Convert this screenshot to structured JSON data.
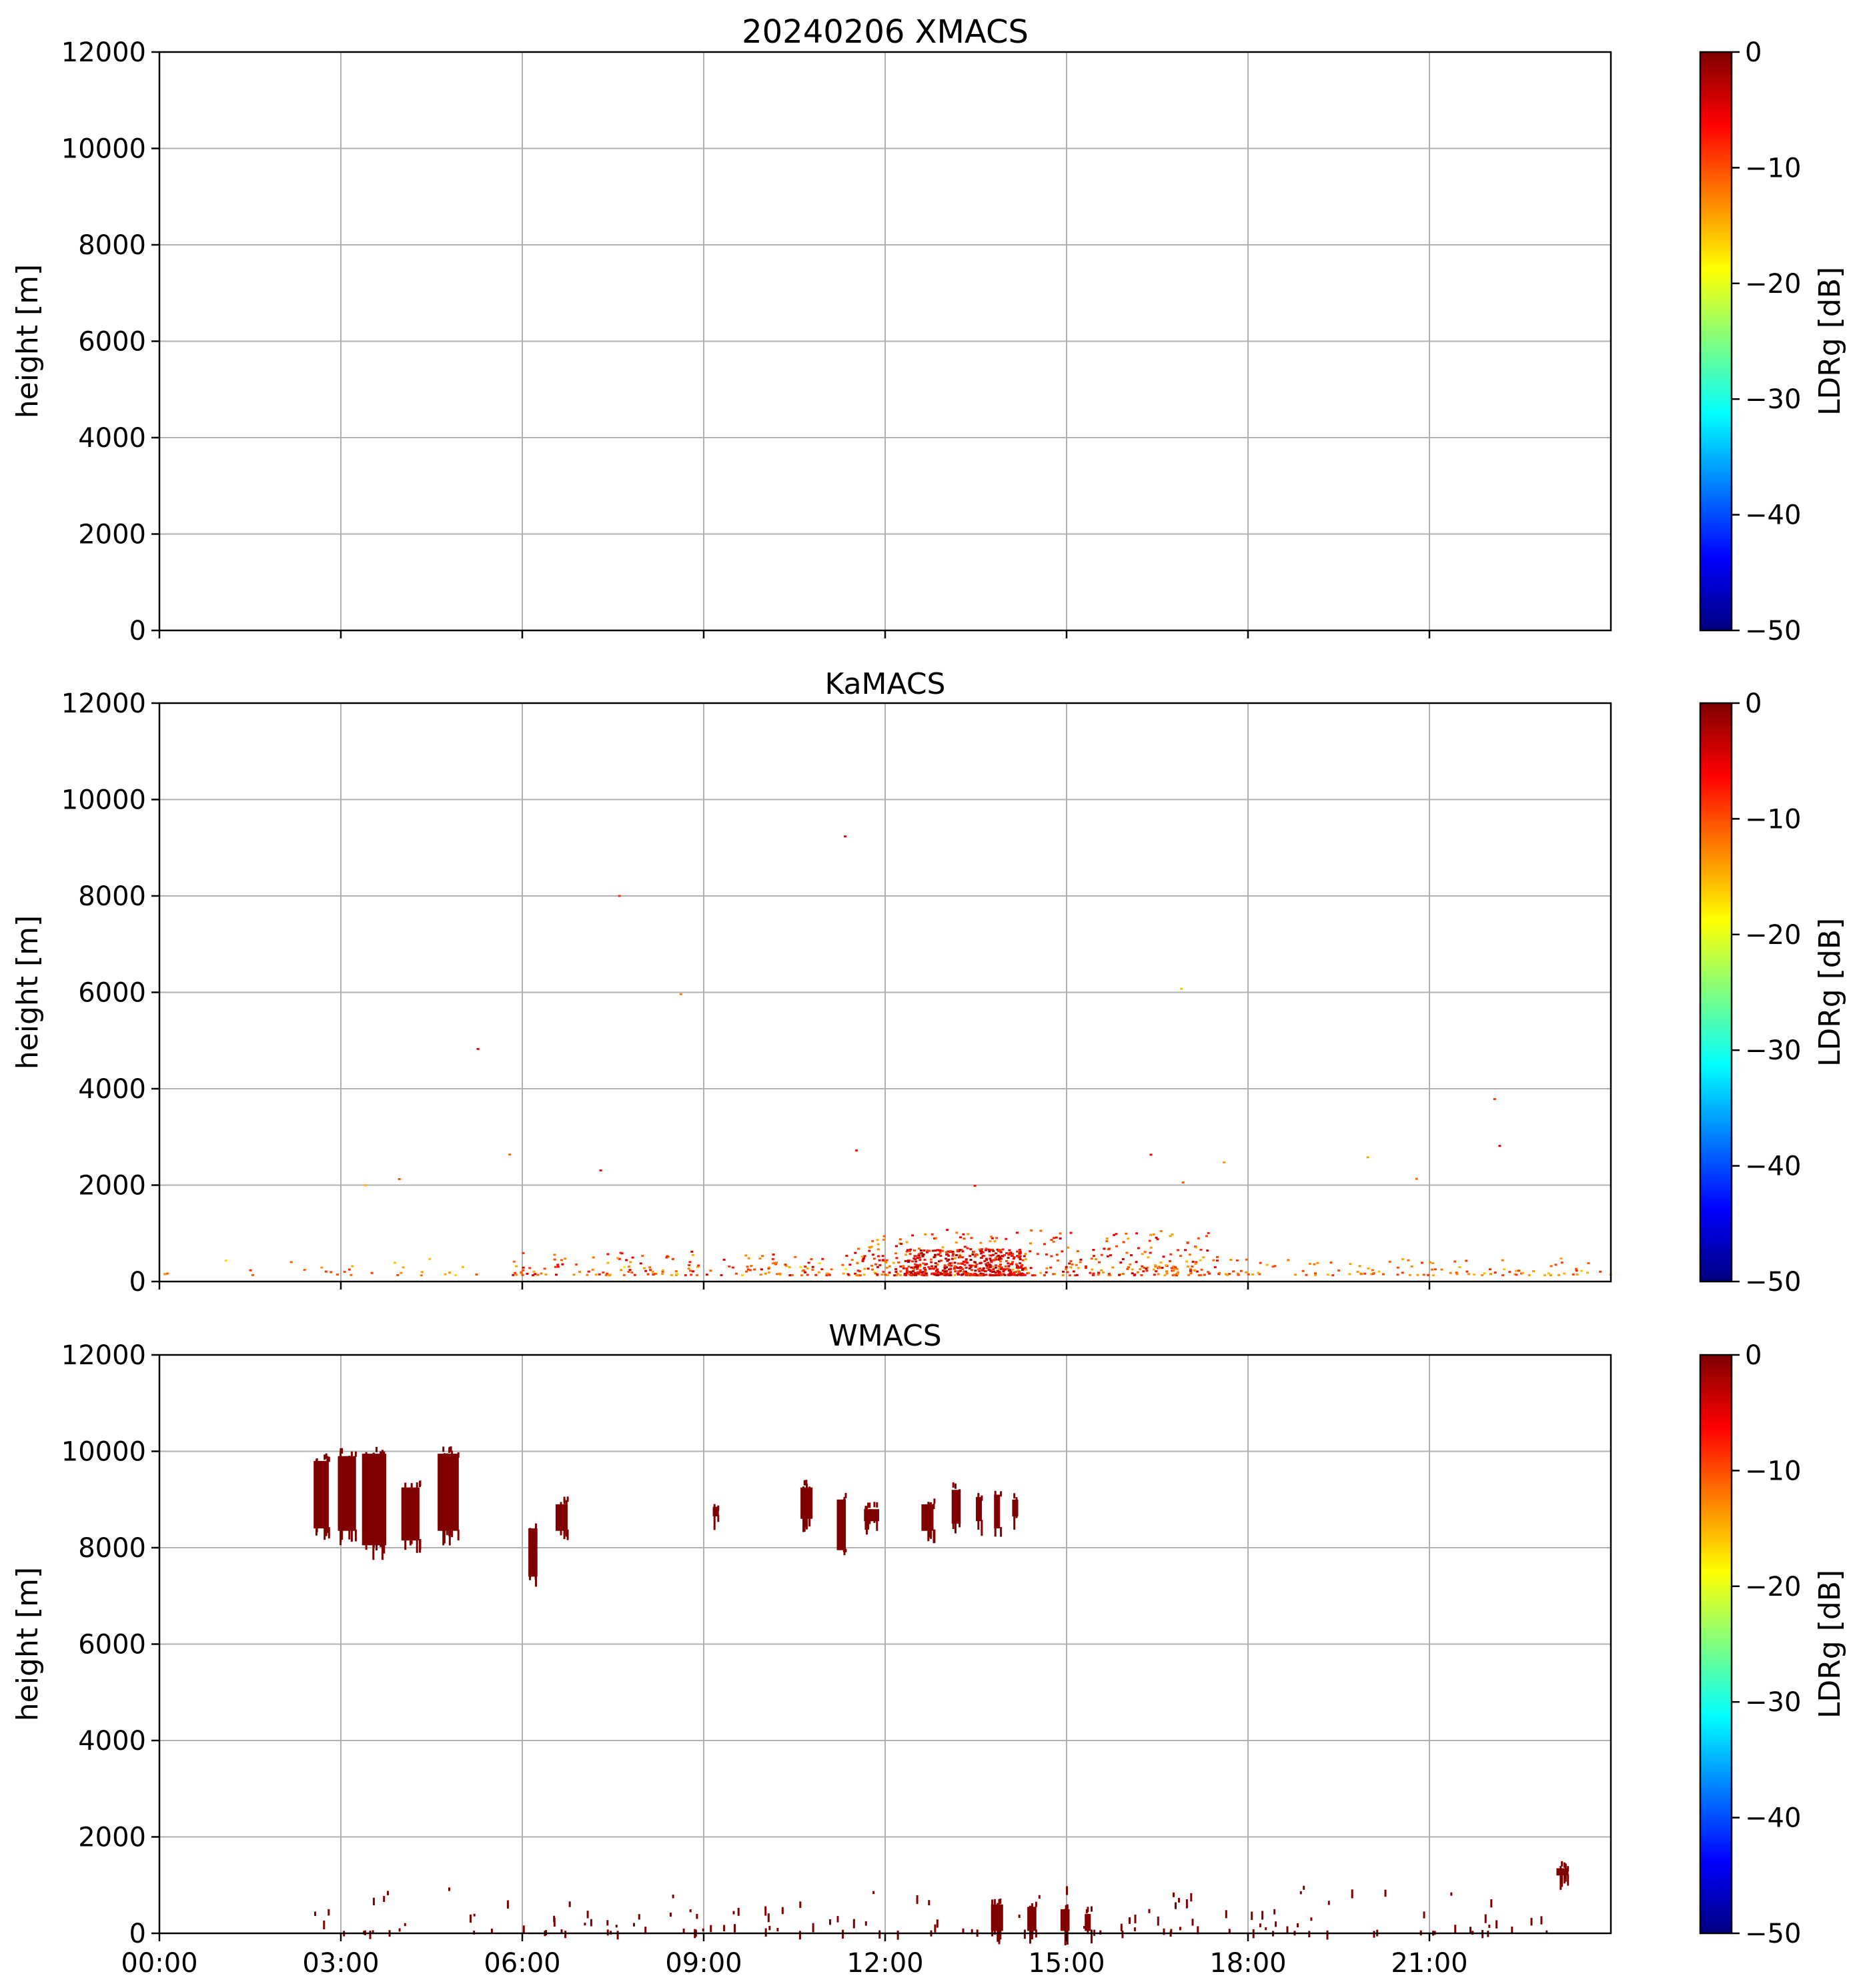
{
  "chart_data": {
    "type": "heatmap",
    "colorscale": "jet",
    "xlim": [
      "00:00",
      "24:00"
    ],
    "xticks": [
      "00:00",
      "03:00",
      "06:00",
      "09:00",
      "12:00",
      "15:00",
      "18:00",
      "21:00"
    ],
    "ylim": [
      0,
      12000
    ],
    "yticks": [
      "0",
      "2000",
      "4000",
      "6000",
      "8000",
      "10000",
      "12000"
    ],
    "grid": true,
    "colorbar": {
      "label": "LDRg [dB]",
      "range": [
        -50,
        0
      ],
      "ticks": [
        "−50",
        "−40",
        "−30",
        "−20",
        "−10",
        "0"
      ]
    },
    "panels": [
      {
        "id": "xmacs",
        "title": "20240206 XMACS",
        "ylabel": "height [m]",
        "echoes": []
      },
      {
        "id": "kamacs",
        "title": "KaMACS",
        "ylabel": "height [m]",
        "clusters": [
          {
            "time_start": 0.0,
            "time_end": 12.5,
            "height_min": 150,
            "height_max": 500,
            "density": 70,
            "ldr_min": -18,
            "ldr_max": -8
          },
          {
            "time_start": 5.8,
            "time_end": 12.0,
            "height_min": 150,
            "height_max": 650,
            "density": 150,
            "ldr_min": -15,
            "ldr_max": -3
          },
          {
            "time_start": 11.5,
            "time_end": 17.5,
            "height_min": 150,
            "height_max": 1100,
            "density": 340,
            "ldr_min": -15,
            "ldr_max": -3
          },
          {
            "time_start": 12.3,
            "time_end": 14.3,
            "height_min": 150,
            "height_max": 700,
            "density": 420,
            "ldr_min": -10,
            "ldr_max": -1
          },
          {
            "time_start": 16.5,
            "time_end": 24.0,
            "height_min": 150,
            "height_max": 500,
            "density": 130,
            "ldr_min": -16,
            "ldr_max": -8
          },
          {
            "time_start": 1.0,
            "time_end": 23.0,
            "height_min": 2000,
            "height_max": 10800,
            "density": 18,
            "ldr_min": -16,
            "ldr_max": -4
          }
        ]
      },
      {
        "id": "wmacs",
        "title": "WMACS",
        "ylabel": "height [m]",
        "ldr_db": 0,
        "columns": [
          {
            "time_start": 2.55,
            "time_end": 2.8,
            "height_bottom": 8400,
            "height_top": 9800
          },
          {
            "time_start": 2.95,
            "time_end": 3.25,
            "height_bottom": 8350,
            "height_top": 9900
          },
          {
            "time_start": 3.35,
            "time_end": 3.75,
            "height_bottom": 8050,
            "height_top": 9950
          },
          {
            "time_start": 4.0,
            "time_end": 4.3,
            "height_bottom": 8150,
            "height_top": 9250
          },
          {
            "time_start": 4.6,
            "time_end": 4.95,
            "height_bottom": 8350,
            "height_top": 9950
          },
          {
            "time_start": 6.1,
            "time_end": 6.25,
            "height_bottom": 7400,
            "height_top": 8400
          },
          {
            "time_start": 6.55,
            "time_end": 6.75,
            "height_bottom": 8350,
            "height_top": 8900
          },
          {
            "time_start": 9.15,
            "time_end": 9.25,
            "height_bottom": 8650,
            "height_top": 8850
          },
          {
            "time_start": 10.6,
            "time_end": 10.8,
            "height_bottom": 8600,
            "height_top": 9250
          },
          {
            "time_start": 11.2,
            "time_end": 11.35,
            "height_bottom": 7950,
            "height_top": 9000
          },
          {
            "time_start": 11.65,
            "time_end": 11.9,
            "height_bottom": 8550,
            "height_top": 8800
          },
          {
            "time_start": 12.6,
            "time_end": 12.8,
            "height_bottom": 8350,
            "height_top": 8900
          },
          {
            "time_start": 13.1,
            "time_end": 13.25,
            "height_bottom": 8500,
            "height_top": 9200
          },
          {
            "time_start": 13.5,
            "time_end": 13.6,
            "height_bottom": 8550,
            "height_top": 9050
          },
          {
            "time_start": 13.8,
            "time_end": 13.9,
            "height_bottom": 8400,
            "height_top": 9100
          },
          {
            "time_start": 14.1,
            "time_end": 14.2,
            "height_bottom": 8650,
            "height_top": 9000
          },
          {
            "time_start": 23.1,
            "time_end": 23.3,
            "height_bottom": 1200,
            "height_top": 1350
          }
        ],
        "low_echoes": [
          {
            "time_start": 13.75,
            "time_end": 13.95,
            "height_bottom": 50,
            "height_top": 600
          },
          {
            "time_start": 14.35,
            "time_end": 14.5,
            "height_bottom": 50,
            "height_top": 550
          },
          {
            "time_start": 14.9,
            "time_end": 15.05,
            "height_bottom": 50,
            "height_top": 500
          },
          {
            "time_start": 15.3,
            "time_end": 15.4,
            "height_bottom": 50,
            "height_top": 400
          }
        ],
        "scatter": {
          "time_start": 2.5,
          "time_end": 23.0,
          "height_min": 50,
          "height_max": 1000,
          "density": 150
        }
      }
    ]
  }
}
